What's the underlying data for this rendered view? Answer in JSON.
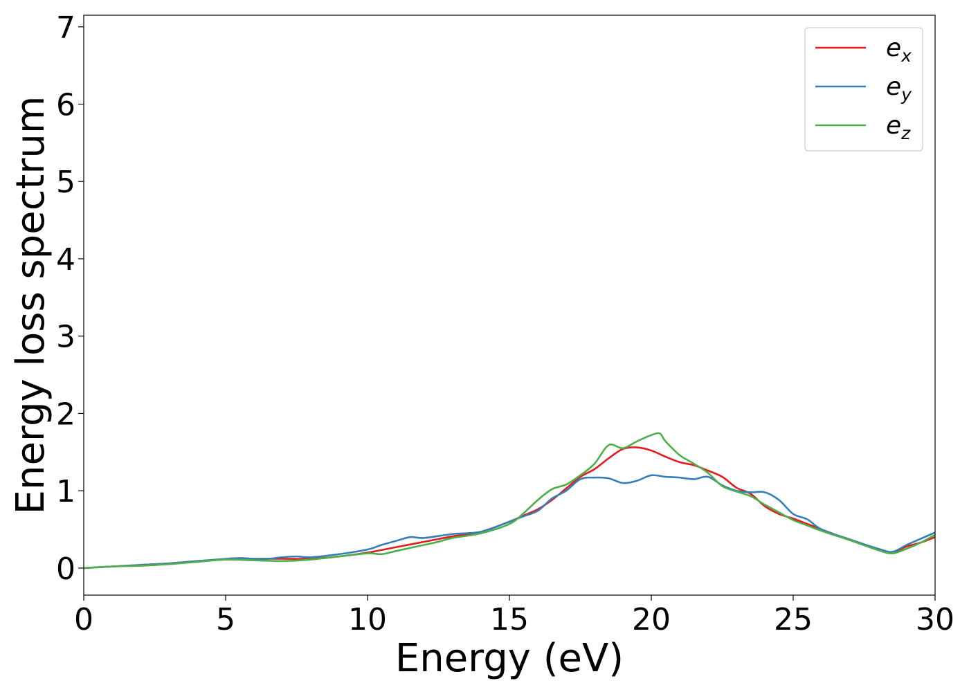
{
  "chart_data": {
    "type": "line",
    "title": "",
    "xlabel": "Energy (eV)",
    "ylabel": "Energy loss spectrum",
    "xlim": [
      0,
      30
    ],
    "ylim": [
      -0.35,
      7.15
    ],
    "xticks": [
      0,
      5,
      10,
      15,
      20,
      25,
      30
    ],
    "xtick_labels": [
      "0",
      "5",
      "10",
      "15",
      "20",
      "25",
      "30"
    ],
    "yticks": [
      0,
      1,
      2,
      3,
      4,
      5,
      6,
      7
    ],
    "ytick_labels": [
      "0",
      "1",
      "2",
      "3",
      "4",
      "5",
      "6",
      "7"
    ],
    "grid": false,
    "legend_position": "top-right",
    "series": [
      {
        "name": "e_x",
        "label_main": "e",
        "label_sub": "x",
        "color": "#e41a1c",
        "x": [
          0,
          1,
          2,
          3,
          4,
          5,
          6,
          7,
          8,
          9,
          10,
          11,
          12,
          13,
          14,
          15,
          15.5,
          16,
          16.5,
          17,
          17.5,
          18,
          18.5,
          19,
          19.5,
          20,
          20.5,
          21,
          21.5,
          22,
          22.5,
          23,
          23.5,
          24,
          24.5,
          25,
          25.5,
          26,
          27,
          28,
          28.5,
          29,
          29.5,
          30
        ],
        "y": [
          0,
          0.02,
          0.04,
          0.06,
          0.09,
          0.11,
          0.12,
          0.12,
          0.12,
          0.15,
          0.2,
          0.27,
          0.34,
          0.41,
          0.47,
          0.6,
          0.68,
          0.76,
          0.88,
          1.03,
          1.18,
          1.28,
          1.42,
          1.54,
          1.56,
          1.52,
          1.44,
          1.37,
          1.33,
          1.26,
          1.18,
          1.04,
          0.96,
          0.8,
          0.7,
          0.64,
          0.57,
          0.5,
          0.36,
          0.24,
          0.2,
          0.28,
          0.33,
          0.4
        ]
      },
      {
        "name": "e_y",
        "label_main": "e",
        "label_sub": "y",
        "color": "#377eb8",
        "x": [
          0,
          1,
          2,
          2.5,
          3,
          4,
          5,
          5.5,
          6,
          6.5,
          7,
          7.5,
          8,
          9,
          10,
          10.5,
          11,
          11.5,
          12,
          13,
          14,
          15,
          15.5,
          16,
          16.5,
          17,
          17.5,
          18,
          18.5,
          19,
          19.5,
          20,
          20.5,
          21,
          21.5,
          22,
          22.5,
          23,
          23.5,
          24,
          24.5,
          25,
          25.5,
          26,
          27,
          28,
          28.5,
          29,
          29.5,
          30
        ],
        "y": [
          0,
          0.02,
          0.04,
          0.05,
          0.06,
          0.09,
          0.12,
          0.13,
          0.12,
          0.12,
          0.14,
          0.15,
          0.14,
          0.18,
          0.24,
          0.3,
          0.35,
          0.4,
          0.39,
          0.44,
          0.47,
          0.6,
          0.67,
          0.74,
          0.9,
          1.0,
          1.15,
          1.17,
          1.16,
          1.1,
          1.13,
          1.2,
          1.18,
          1.17,
          1.15,
          1.18,
          1.07,
          1.0,
          0.98,
          0.98,
          0.88,
          0.7,
          0.63,
          0.5,
          0.37,
          0.25,
          0.21,
          0.3,
          0.38,
          0.46
        ]
      },
      {
        "name": "e_z",
        "label_main": "e",
        "label_sub": "z",
        "color": "#4daf4a",
        "x": [
          0,
          1,
          2,
          3,
          4,
          5,
          6,
          7,
          8,
          9,
          10,
          10.5,
          11,
          11.5,
          12,
          12.5,
          13,
          14,
          15,
          15.5,
          16,
          16.5,
          17,
          17.5,
          18,
          18.5,
          19,
          19.5,
          20,
          20.3,
          20.5,
          21,
          21.5,
          22,
          22.5,
          23,
          23.5,
          24,
          24.5,
          25,
          25.5,
          26,
          27,
          28,
          28.5,
          29,
          29.5,
          30
        ],
        "y": [
          0,
          0.02,
          0.03,
          0.05,
          0.08,
          0.11,
          0.1,
          0.09,
          0.11,
          0.15,
          0.19,
          0.18,
          0.22,
          0.26,
          0.3,
          0.34,
          0.39,
          0.45,
          0.57,
          0.71,
          0.88,
          1.02,
          1.08,
          1.2,
          1.35,
          1.59,
          1.55,
          1.64,
          1.72,
          1.74,
          1.64,
          1.46,
          1.35,
          1.23,
          1.06,
          0.99,
          0.93,
          0.82,
          0.72,
          0.62,
          0.55,
          0.48,
          0.36,
          0.23,
          0.19,
          0.25,
          0.33,
          0.43
        ]
      }
    ]
  }
}
